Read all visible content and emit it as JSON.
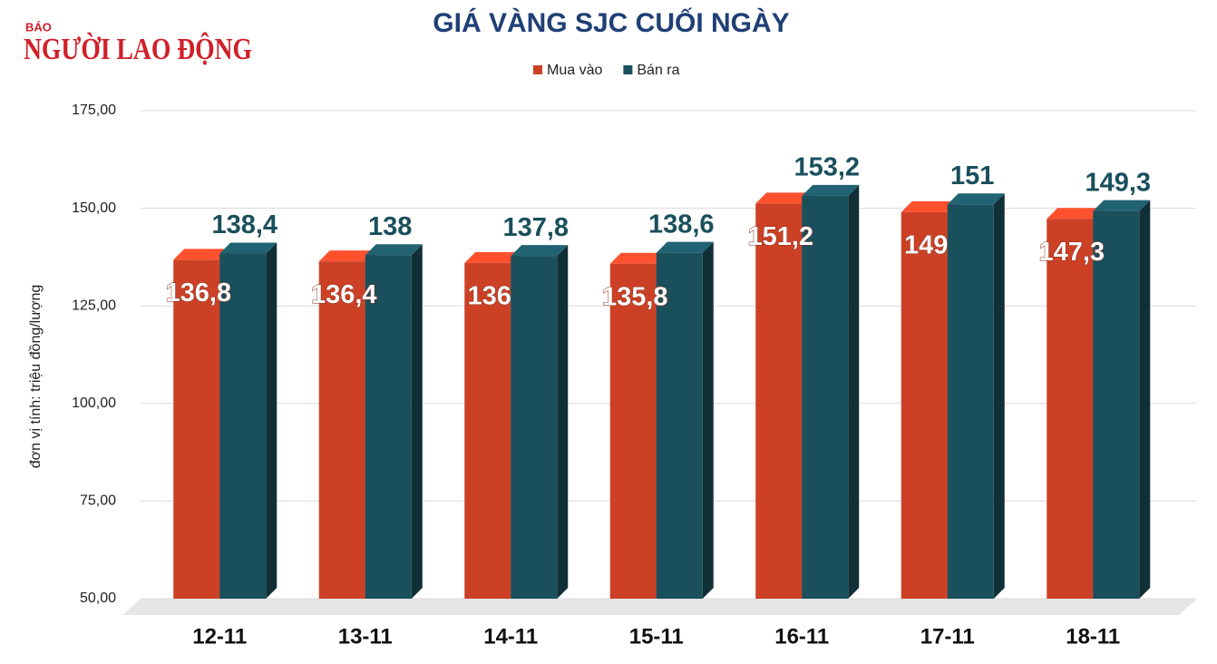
{
  "logo": {
    "small": "BÁO",
    "main": "NGƯỜI LAO ĐỘNG"
  },
  "chart_data": {
    "type": "bar3d",
    "title": "GIÁ VÀNG SJC CUỐI NGÀY",
    "y_label": "đơn vị tính: triệu đồng/lượng",
    "categories": [
      "12-11",
      "13-11",
      "14-11",
      "15-11",
      "16-11",
      "17-11",
      "18-11"
    ],
    "series": [
      {
        "name": "Mua vào",
        "color": "#cc4125",
        "values": [
          136.8,
          136.4,
          136,
          135.8,
          151.2,
          149,
          147.3
        ],
        "value_labels": [
          "136,8",
          "136,4",
          "136",
          "135,8",
          "151,2",
          "149",
          "147,3"
        ]
      },
      {
        "name": "Bán ra",
        "color": "#1a4f5c",
        "values": [
          138.4,
          138,
          137.8,
          138.6,
          153.2,
          151,
          149.3
        ],
        "value_labels": [
          "138,4",
          "138",
          "137,8",
          "138,6",
          "153,2",
          "151",
          "149,3"
        ]
      }
    ],
    "ylim": [
      50,
      175
    ],
    "yticks": [
      {
        "value": 50,
        "label": "50,00"
      },
      {
        "value": 75,
        "label": "75,00"
      },
      {
        "value": 100,
        "label": "100,00"
      },
      {
        "value": 125,
        "label": "125,00"
      },
      {
        "value": 150,
        "label": "150,00"
      },
      {
        "value": 175,
        "label": "175,00"
      }
    ],
    "grid": true,
    "legend": "top"
  }
}
